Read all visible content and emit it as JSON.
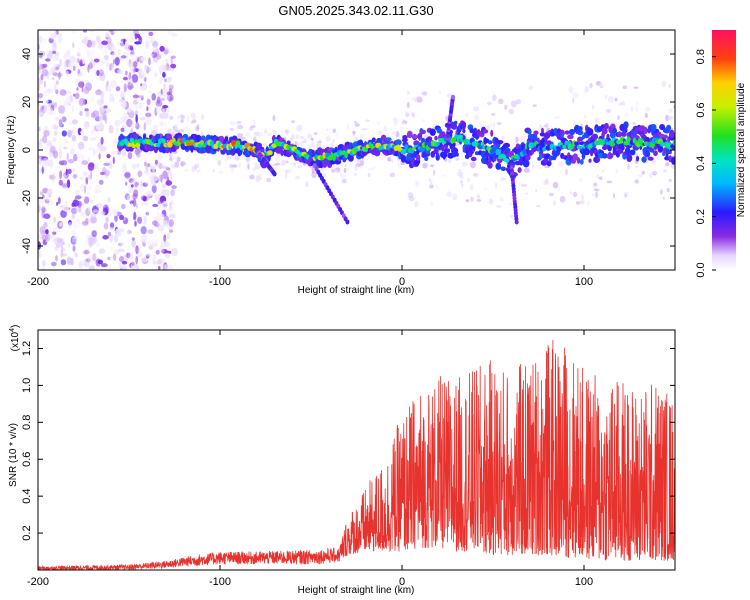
{
  "title": "GN05.2025.343.02.11.G30",
  "chart_data": [
    {
      "type": "heatmap",
      "name": "spectrogram",
      "xlabel": "Height of straight line (km)",
      "ylabel": "Frequency (Hz)",
      "xlim": [
        -200,
        150
      ],
      "ylim": [
        -50,
        50
      ],
      "xticks": [
        -200,
        -100,
        0,
        100
      ],
      "yticks": [
        -40,
        -20,
        0,
        20,
        40
      ],
      "colorbar": {
        "label": "Normalized spectral amplitude",
        "range": [
          0,
          0.9
        ],
        "ticks": [
          "0.0",
          "0.2",
          "0.4",
          "0.6",
          "0.8"
        ]
      },
      "ridge": {
        "description_points_x": [
          -150,
          -120,
          -100,
          -90,
          -80,
          -75,
          -70,
          -60,
          -50,
          -40,
          -30,
          -20,
          -10,
          0,
          10,
          20,
          30,
          40,
          50,
          60,
          70,
          80,
          90,
          100,
          110,
          120,
          130,
          140,
          150
        ],
        "description_points_y": [
          3,
          3,
          2,
          2,
          0,
          -4,
          3,
          0,
          -3,
          -3,
          -1,
          1,
          2,
          0,
          1,
          3,
          5,
          3,
          0,
          -5,
          2,
          1,
          2,
          2,
          3,
          4,
          3,
          3,
          2
        ]
      }
    },
    {
      "type": "line",
      "name": "snr",
      "xlabel": "Height of straight line (km)",
      "ylabel": "SNR (10 * v/v)",
      "y_multiplier": "(x10",
      "y_multiplier_exp": "4",
      "y_multiplier_close": ")",
      "xlim": [
        -200,
        150
      ],
      "ylim": [
        0,
        1.3
      ],
      "xticks": [
        -200,
        -100,
        0,
        100
      ],
      "yticks": [
        0.2,
        0.4,
        0.6,
        0.8,
        1.0,
        1.2
      ],
      "color": "#e8322d",
      "envelope_x": [
        -200,
        -150,
        -130,
        -115,
        -100,
        -80,
        -50,
        -35,
        -30,
        -20,
        -10,
        0,
        10,
        20,
        30,
        40,
        50,
        60,
        70,
        80,
        90,
        100,
        110,
        120,
        130,
        140,
        150
      ],
      "envelope_y": [
        0.02,
        0.03,
        0.05,
        0.08,
        0.1,
        0.1,
        0.11,
        0.12,
        0.3,
        0.45,
        0.6,
        0.85,
        1.0,
        1.05,
        1.05,
        1.1,
        1.15,
        1.1,
        1.15,
        1.25,
        1.25,
        1.1,
        1.05,
        1.05,
        1.0,
        1.05,
        0.95
      ],
      "floor_y": [
        0.0,
        0.0,
        0.01,
        0.02,
        0.03,
        0.03,
        0.03,
        0.04,
        0.08,
        0.1,
        0.1,
        0.1,
        0.12,
        0.12,
        0.1,
        0.1,
        0.08,
        0.08,
        0.08,
        0.08,
        0.07,
        0.06,
        0.05,
        0.05,
        0.05,
        0.05,
        0.05
      ]
    }
  ],
  "text": {
    "top_xlabel": "Height of straight line (km)",
    "top_ylabel": "Frequency (Hz)",
    "bottom_xlabel": "Height of straight line (km)",
    "bottom_ylabel": "SNR (10 * v/v)",
    "colorbar_label": "Normalized spectral amplitude"
  }
}
